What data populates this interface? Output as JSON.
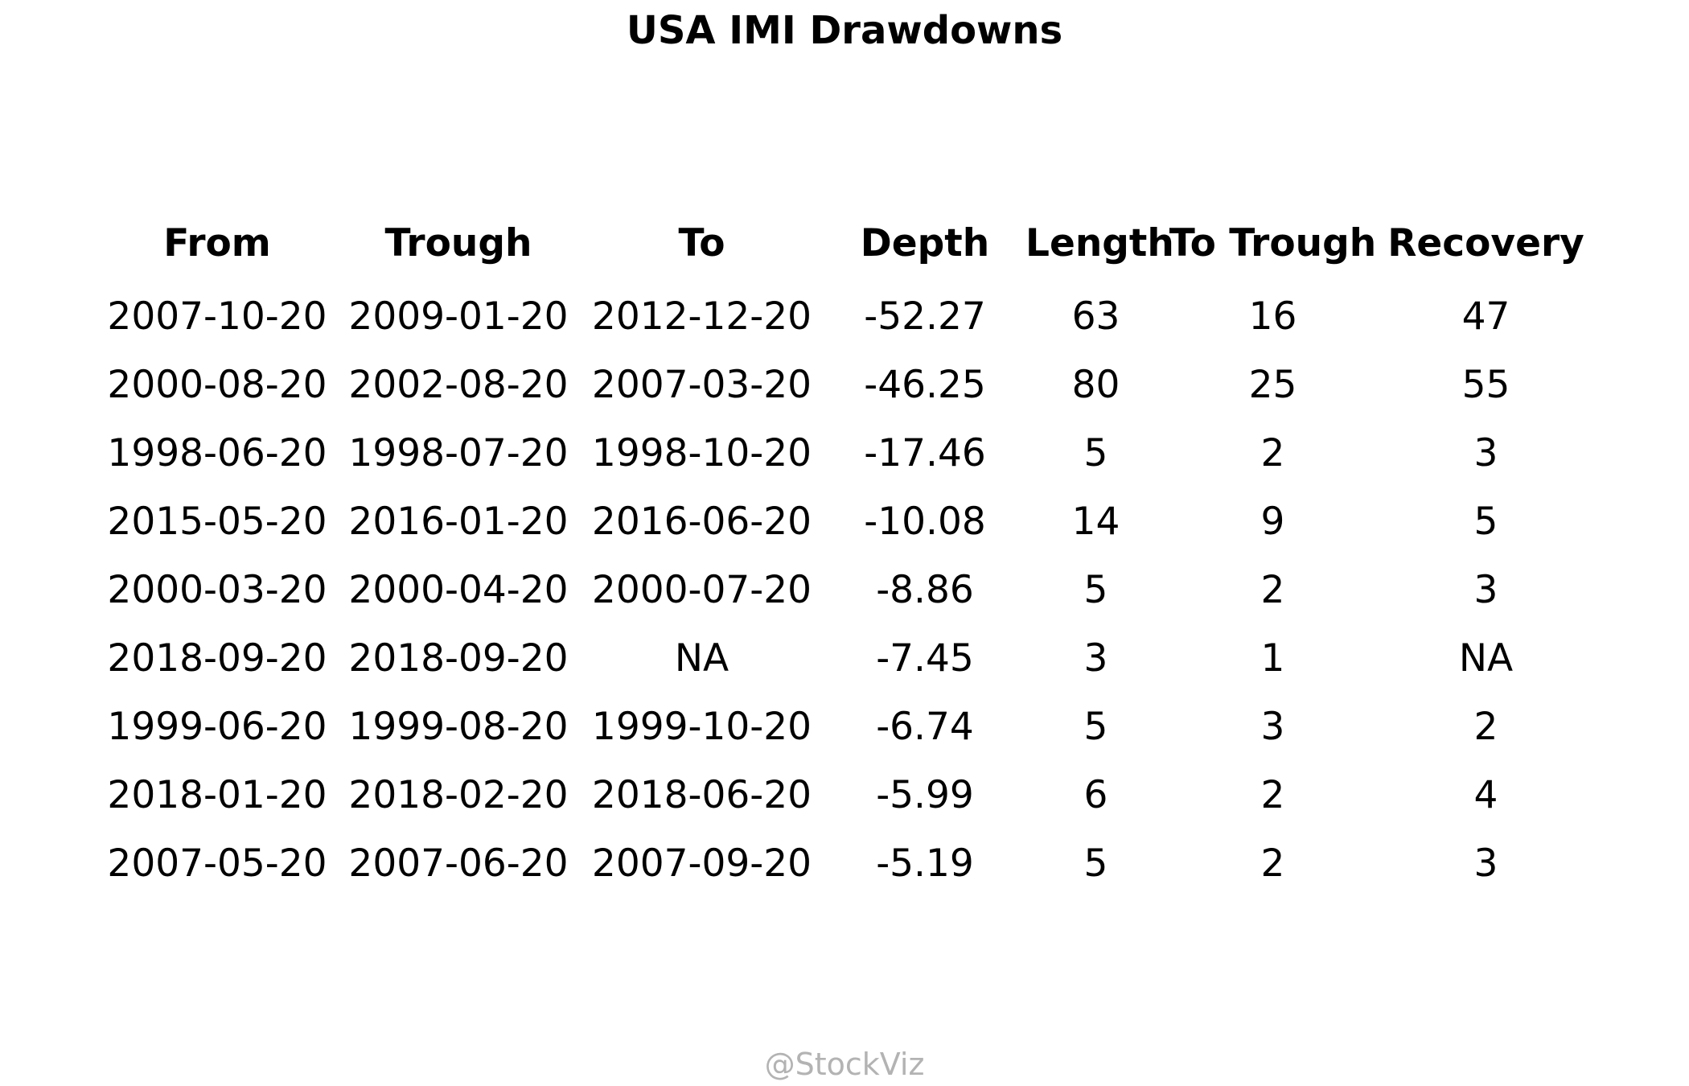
{
  "chart_data": {
    "type": "table",
    "title": "USA IMI Drawdowns",
    "columns": [
      "From",
      "Trough",
      "To",
      "Depth",
      "Length",
      "To Trough",
      "Recovery"
    ],
    "rows": [
      [
        "2007-10-20",
        "2009-01-20",
        "2012-12-20",
        "-52.27",
        "63",
        "16",
        "47"
      ],
      [
        "2000-08-20",
        "2002-08-20",
        "2007-03-20",
        "-46.25",
        "80",
        "25",
        "55"
      ],
      [
        "1998-06-20",
        "1998-07-20",
        "1998-10-20",
        "-17.46",
        "5",
        "2",
        "3"
      ],
      [
        "2015-05-20",
        "2016-01-20",
        "2016-06-20",
        "-10.08",
        "14",
        "9",
        "5"
      ],
      [
        "2000-03-20",
        "2000-04-20",
        "2000-07-20",
        "-8.86",
        "5",
        "2",
        "3"
      ],
      [
        "2018-09-20",
        "2018-09-20",
        "NA",
        "-7.45",
        "3",
        "1",
        "NA"
      ],
      [
        "1999-06-20",
        "1999-08-20",
        "1999-10-20",
        "-6.74",
        "5",
        "3",
        "2"
      ],
      [
        "2018-01-20",
        "2018-02-20",
        "2018-06-20",
        "-5.99",
        "6",
        "2",
        "4"
      ],
      [
        "2007-05-20",
        "2007-06-20",
        "2007-09-20",
        "-5.19",
        "5",
        "2",
        "3"
      ]
    ]
  },
  "watermark": "@StockViz"
}
